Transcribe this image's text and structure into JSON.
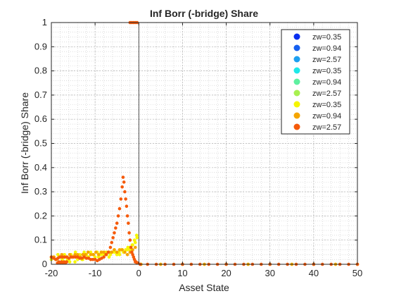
{
  "chart_data": {
    "type": "scatter",
    "title": "Inf Borr (-bridge) Share",
    "xlabel": "Asset State",
    "ylabel": "Inf Borr (-bridge) Share",
    "xlim": [
      -20,
      50
    ],
    "ylim": [
      0,
      1
    ],
    "x_ticks": [
      -20,
      -10,
      0,
      10,
      20,
      30,
      40,
      50
    ],
    "x_tick_labels": [
      "-20",
      "-10",
      "0",
      "10",
      "20",
      "30",
      "40",
      "50"
    ],
    "y_ticks": [
      0,
      0.1,
      0.2,
      0.3,
      0.4,
      0.5,
      0.6,
      0.7,
      0.8,
      0.9,
      1
    ],
    "y_tick_labels": [
      "0",
      "0.1",
      "0.2",
      "0.3",
      "0.4",
      "0.5",
      "0.6",
      "0.7",
      "0.8",
      "0.9",
      "1"
    ],
    "grid": true,
    "minor_grid": true,
    "vertical_line_x": 0,
    "legend_position": "top-right",
    "series": [
      {
        "name": "zw=0.35",
        "color": "#0a2ff0",
        "x": [],
        "y": []
      },
      {
        "name": "zw=0.94",
        "color": "#1560f0",
        "x": [],
        "y": []
      },
      {
        "name": "zw=2.57",
        "color": "#1ea0f0",
        "x": [],
        "y": []
      },
      {
        "name": "zw=0.35",
        "color": "#1ee8e8",
        "x": [],
        "y": []
      },
      {
        "name": "zw=0.94",
        "color": "#5ef0a0",
        "x": [],
        "y": []
      },
      {
        "name": "zw=2.57",
        "color": "#a8f050",
        "x": [],
        "y": []
      },
      {
        "name": "zw=0.35",
        "color": "#f5f500",
        "x": [
          -20,
          -19.5,
          -19,
          -18.5,
          -18,
          -17.5,
          -17,
          -16.5,
          -16,
          -15.5,
          -15,
          -14.5,
          -14,
          -13.5,
          -13,
          -12.5,
          -12,
          -11.5,
          -11,
          -10.5,
          -10,
          -9.5,
          -9,
          -8.5,
          -8,
          -7.5,
          -7,
          -6.5,
          -6,
          -5.5,
          -5,
          -4.5,
          -4,
          -3.5,
          -3,
          -2.5,
          -2,
          -1.5,
          -1,
          -0.5,
          -16.8,
          -16.3,
          -15.8,
          -15.2,
          -14.6,
          -14,
          -13.4,
          -12.8,
          -12.2,
          -11.6,
          -11,
          -10.4,
          -9.8,
          -9.2,
          -8.6,
          -8,
          -7.4,
          -6.8,
          -6.2,
          -5.6,
          -5,
          -4.4,
          -3.8,
          -3.2,
          -2.6,
          -2,
          -1.4,
          -0.8,
          -0.4,
          0.5,
          5,
          10,
          15,
          20,
          25,
          30,
          35,
          40,
          45,
          50
        ],
        "y": [
          0.02,
          0.03,
          0.02,
          0.04,
          0.03,
          0.02,
          0.04,
          0.03,
          0.02,
          0.04,
          0.03,
          0.05,
          0.03,
          0.04,
          0.02,
          0.05,
          0.04,
          0.03,
          0.05,
          0.04,
          0.03,
          0.05,
          0.04,
          0.05,
          0.04,
          0.05,
          0.05,
          0.04,
          0.05,
          0.05,
          0.04,
          0.05,
          0.06,
          0.05,
          0.06,
          0.07,
          0.06,
          0.08,
          0.1,
          0.12,
          0.01,
          0.02,
          0.01,
          0.03,
          0.01,
          0.02,
          0.03,
          0.02,
          0.04,
          0.03,
          0.02,
          0.04,
          0.05,
          0.03,
          0.04,
          0.05,
          0.04,
          0.03,
          0.05,
          0.06,
          0.05,
          0.04,
          0.06,
          0.05,
          0.06,
          0.07,
          0.08,
          0.09,
          0.11,
          0,
          0,
          0,
          0,
          0,
          0,
          0,
          0,
          0,
          0,
          0
        ]
      },
      {
        "name": "zw=0.94",
        "color": "#f5a500",
        "x": [
          -20,
          -19.4,
          -18.8,
          -18.2,
          -17.6,
          -17,
          -16.4,
          -15.8,
          -15.2,
          -14.6,
          -14,
          -13.4,
          -12.8,
          -12.2,
          -11.6,
          -11,
          -10.4,
          -9.8,
          -9.2,
          -8.6,
          -8,
          -7.4,
          -6.8,
          -6.2,
          -5.6,
          -5,
          -4.4,
          -3.8,
          -3.2,
          -2.6,
          -2,
          -1.4,
          -0.8,
          0.5,
          5,
          10,
          15,
          20,
          25,
          30,
          35,
          40,
          45,
          50
        ],
        "y": [
          0.03,
          0.03,
          0.02,
          0.03,
          0.04,
          0.03,
          0.03,
          0.04,
          0.03,
          0.04,
          0.04,
          0.03,
          0.04,
          0.04,
          0.05,
          0.04,
          0.04,
          0.05,
          0.04,
          0.05,
          0.05,
          0.04,
          0.05,
          0.05,
          0.06,
          0.05,
          0.06,
          0.06,
          0.05,
          0.04,
          0.05,
          0.06,
          0.07,
          0,
          0,
          0,
          0,
          0,
          0,
          0,
          0,
          0,
          0,
          0
        ]
      },
      {
        "name": "zw=2.57",
        "color": "#f55a0a",
        "x": [
          -20,
          -19.5,
          -19,
          -18.5,
          -18,
          -17.5,
          -17,
          -16.5,
          -16,
          -15.5,
          -15,
          -14.5,
          -14,
          -13.5,
          -13,
          -12.5,
          -12,
          -11.5,
          -11,
          -10.5,
          -10,
          -9.5,
          -9,
          -8.5,
          -8,
          -7.5,
          -7,
          -6.5,
          -6.2,
          -5.9,
          -5.6,
          -5.3,
          -5,
          -4.7,
          -4.4,
          -4.1,
          -3.8,
          -3.6,
          -3.4,
          -3.2,
          -3,
          -2.8,
          -2.6,
          -2.4,
          -2.2,
          -2,
          -1.8,
          -1.6,
          -1.4,
          -1.2,
          -1,
          -0.8,
          -0.6,
          -0.4,
          -0.2,
          -2,
          -1.6,
          -1.2,
          -0.8,
          -0.4,
          -18.6,
          -18.3,
          -18,
          -17.7,
          -17.4,
          -17.1,
          -16.8,
          -16.5,
          0.3,
          2,
          4,
          6,
          8,
          10,
          12,
          14,
          16,
          18,
          20,
          22,
          24,
          26,
          28,
          30,
          32,
          34,
          36,
          38,
          40,
          42,
          44,
          46,
          48,
          50
        ],
        "y": [
          0.03,
          0.025,
          0.02,
          0.025,
          0.03,
          0.03,
          0.03,
          0.03,
          0.025,
          0.03,
          0.03,
          0.03,
          0.03,
          0.025,
          0.025,
          0.03,
          0.025,
          0.025,
          0.02,
          0.02,
          0.02,
          0.015,
          0.02,
          0.025,
          0.03,
          0.04,
          0.05,
          0.07,
          0.09,
          0.11,
          0.13,
          0.15,
          0.17,
          0.2,
          0.23,
          0.27,
          0.32,
          0.36,
          0.34,
          0.3,
          0.27,
          0.24,
          0.2,
          0.17,
          0.13,
          0.1,
          0.07,
          0.05,
          0.04,
          0.03,
          0.02,
          0.01,
          0.01,
          0.005,
          0.005,
          1,
          1,
          1,
          1,
          1,
          0.005,
          0.01,
          0.005,
          0.01,
          0.005,
          0.01,
          0.005,
          0.01,
          0,
          0,
          0,
          0,
          0,
          0,
          0,
          0,
          0,
          0,
          0,
          0,
          0,
          0,
          0,
          0,
          0,
          0,
          0,
          0,
          0,
          0,
          0,
          0,
          0,
          0
        ]
      }
    ]
  }
}
